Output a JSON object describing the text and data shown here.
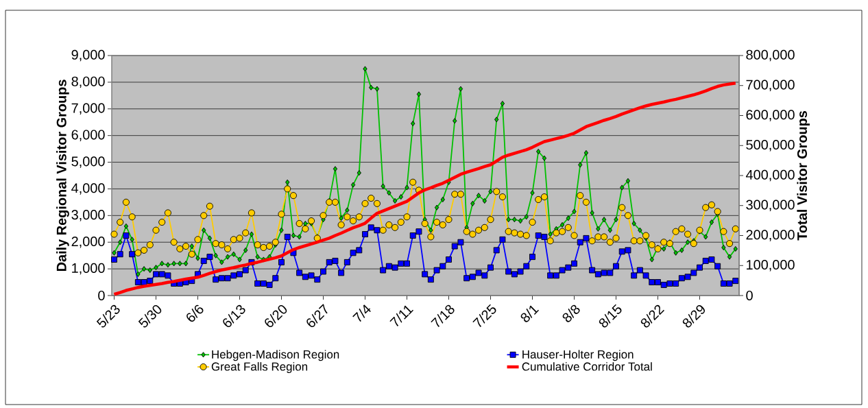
{
  "chart_data": {
    "type": "line",
    "ylabel": "Daily Regional Visitor Groups",
    "y2label": "Total Visitor Groups",
    "categories": [
      "5/23",
      null,
      null,
      null,
      null,
      null,
      null,
      "5/30",
      null,
      null,
      null,
      null,
      null,
      null,
      "6/6",
      null,
      null,
      null,
      null,
      null,
      null,
      "6/13",
      null,
      null,
      null,
      null,
      null,
      null,
      "6/20",
      null,
      null,
      null,
      null,
      null,
      null,
      "6/27",
      null,
      null,
      null,
      null,
      null,
      null,
      "7/4",
      null,
      null,
      null,
      null,
      null,
      null,
      "7/11",
      null,
      null,
      null,
      null,
      null,
      null,
      "7/18",
      null,
      null,
      null,
      null,
      null,
      null,
      "7/25",
      null,
      null,
      null,
      null,
      null,
      null,
      "8/1",
      null,
      null,
      null,
      null,
      null,
      null,
      "8/8",
      null,
      null,
      null,
      null,
      null,
      null,
      "8/15",
      null,
      null,
      null,
      null,
      null,
      null,
      "8/22",
      null,
      null,
      null,
      null,
      null,
      null,
      "8/29",
      null,
      null,
      null,
      null,
      null,
      null
    ],
    "series": [
      {
        "name": "Hebgen-Madison Region",
        "color": "#00c000",
        "marker": "diamond",
        "values": [
          1600,
          2000,
          2600,
          2100,
          800,
          1000,
          950,
          1050,
          1200,
          1150,
          1200,
          1200,
          1200,
          1850,
          1400,
          2450,
          2150,
          1500,
          1250,
          1450,
          1550,
          1350,
          1700,
          2300,
          1450,
          1350,
          1450,
          1900,
          2450,
          4250,
          2250,
          2200,
          2700,
          2700,
          2200,
          2850,
          3550,
          4750,
          2900,
          3200,
          4150,
          4600,
          8500,
          7800,
          7750,
          4100,
          3850,
          3550,
          3700,
          4050,
          6450,
          7550,
          2850,
          2450,
          3300,
          3600,
          4250,
          6550,
          7750,
          2550,
          3450,
          3750,
          3550,
          3900,
          6600,
          7200,
          2850,
          2850,
          2800,
          2950,
          3850,
          5400,
          5150,
          2300,
          2500,
          2650,
          2900,
          3150,
          4900,
          5350,
          3100,
          2500,
          2850,
          2450,
          2850,
          4050,
          4300,
          2700,
          2450,
          2150,
          1350,
          1800,
          1750,
          2000,
          1600,
          1700,
          2000,
          2050,
          2400,
          2200,
          2750,
          3050,
          1800,
          1450,
          1750
        ]
      },
      {
        "name": "Hauser-Holter Region",
        "color": "#0000ff",
        "marker": "square",
        "values": [
          1350,
          1550,
          2250,
          1550,
          500,
          500,
          550,
          800,
          800,
          750,
          450,
          450,
          500,
          550,
          800,
          1300,
          1450,
          600,
          650,
          650,
          750,
          800,
          950,
          1250,
          450,
          450,
          400,
          650,
          1250,
          2200,
          1600,
          850,
          700,
          750,
          600,
          900,
          1250,
          1300,
          850,
          1250,
          1600,
          1700,
          2300,
          2550,
          2450,
          950,
          1100,
          1050,
          1200,
          1200,
          2250,
          2400,
          800,
          600,
          950,
          1100,
          1350,
          1850,
          2000,
          650,
          700,
          850,
          750,
          1050,
          1700,
          2100,
          900,
          800,
          900,
          1100,
          1450,
          2250,
          2200,
          750,
          750,
          950,
          1050,
          1200,
          2000,
          2150,
          950,
          800,
          850,
          850,
          1100,
          1650,
          1700,
          750,
          950,
          750,
          500,
          500,
          400,
          450,
          450,
          650,
          700,
          850,
          1050,
          1300,
          1350,
          1100,
          450,
          450,
          550
        ]
      },
      {
        "name": "Great Falls Region",
        "color": "#ffcc00",
        "marker": "circle",
        "values": [
          2300,
          2750,
          3500,
          2950,
          1600,
          1700,
          1900,
          2450,
          2750,
          3100,
          2000,
          1750,
          1850,
          1550,
          2100,
          3000,
          3350,
          1950,
          1900,
          1750,
          2100,
          2150,
          2350,
          3100,
          1900,
          1800,
          1850,
          2000,
          3050,
          4000,
          3750,
          2700,
          2500,
          2800,
          2150,
          3000,
          3500,
          3500,
          2650,
          2950,
          2800,
          2950,
          3450,
          3650,
          3450,
          2450,
          2650,
          2550,
          2750,
          2950,
          4250,
          3950,
          2700,
          2200,
          2750,
          2650,
          2850,
          3800,
          3800,
          2400,
          2300,
          2450,
          2550,
          2850,
          3900,
          3700,
          2400,
          2350,
          2300,
          2250,
          2750,
          3600,
          3700,
          2050,
          2350,
          2400,
          2550,
          2250,
          3750,
          3500,
          2050,
          2200,
          2200,
          2000,
          2150,
          3300,
          3000,
          2050,
          2050,
          2250,
          1900,
          1750,
          2000,
          1950,
          2400,
          2500,
          2300,
          1950,
          2450,
          3300,
          3400,
          3150,
          2400,
          1950,
          2500
        ]
      },
      {
        "name": "Cumulative Corridor Total",
        "color": "#ff0000",
        "marker": "none",
        "axis": "y2",
        "values": [
          4000,
          10000,
          17000,
          22000,
          27000,
          31000,
          34000,
          37000,
          40000,
          44000,
          47000,
          51000,
          55000,
          58000,
          61000,
          67000,
          74000,
          80000,
          85000,
          89000,
          93000,
          98000,
          102000,
          107000,
          111000,
          116000,
          121000,
          126000,
          132000,
          143000,
          153000,
          160000,
          166000,
          172000,
          178000,
          185000,
          191000,
          200000,
          208000,
          217000,
          226000,
          233000,
          241000,
          258000,
          274000,
          282000,
          290000,
          298000,
          306000,
          314000,
          328000,
          342000,
          352000,
          359000,
          367000,
          374000,
          384000,
          394000,
          404000,
          411000,
          417000,
          423000,
          430000,
          436000,
          448000,
          461000,
          468000,
          474000,
          480000,
          486000,
          494000,
          504000,
          513000,
          518000,
          523000,
          528000,
          534000,
          541000,
          552000,
          563000,
          570000,
          577000,
          584000,
          590000,
          597000,
          605000,
          612000,
          619000,
          626000,
          632000,
          637000,
          641000,
          645000,
          650000,
          654000,
          659000,
          664000,
          669000,
          675000,
          682000,
          690000,
          697000,
          702000,
          705000,
          708000
        ]
      }
    ],
    "ylim": [
      0,
      9000
    ],
    "yticks": [
      0,
      {
        "value": 1000,
        "label": "1,000"
      },
      {
        "value": 2000,
        "label": "2,000"
      },
      {
        "value": 3000,
        "label": "3,000"
      },
      {
        "value": 4000,
        "label": "4,000"
      },
      {
        "value": 5000,
        "label": "5,000"
      },
      {
        "value": 6000,
        "label": "6,000"
      },
      {
        "value": 7000,
        "label": "7,000"
      },
      {
        "value": 8000,
        "label": "8,000"
      },
      {
        "value": 9000,
        "label": "9,000"
      }
    ],
    "y2lim": [
      0,
      800000
    ],
    "y2ticks": [
      0,
      {
        "value": 100000,
        "label": "100,000"
      },
      {
        "value": 200000,
        "label": "200,000"
      },
      {
        "value": 300000,
        "label": "300,000"
      },
      {
        "value": 400000,
        "label": "400,000"
      },
      {
        "value": 500000,
        "label": "500,000"
      },
      {
        "value": 600000,
        "label": "600,000"
      },
      {
        "value": 700000,
        "label": "700,000"
      },
      {
        "value": 800000,
        "label": "800,000"
      }
    ],
    "grid": "y",
    "legend": "bottom"
  }
}
